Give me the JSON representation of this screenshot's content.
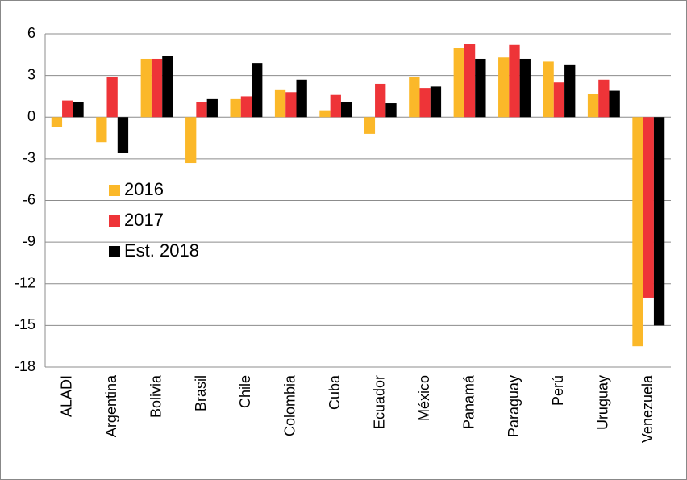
{
  "chart_data": {
    "type": "bar",
    "categories": [
      "ALADI",
      "Argentina",
      "Bolivia",
      "Brasil",
      "Chile",
      "Colombia",
      "Cuba",
      "Ecuador",
      "México",
      "Panamá",
      "Paraguay",
      "Perú",
      "Uruguay",
      "Venezuela"
    ],
    "series": [
      {
        "name": "2016",
        "color": "#fbb829",
        "values": [
          -0.7,
          -1.8,
          4.2,
          -3.3,
          1.3,
          2.0,
          0.5,
          -1.2,
          2.9,
          5.0,
          4.3,
          4.0,
          1.7,
          -16.5
        ]
      },
      {
        "name": "2017",
        "color": "#ee3438",
        "values": [
          1.2,
          2.9,
          4.2,
          1.1,
          1.5,
          1.8,
          1.6,
          2.4,
          2.1,
          5.3,
          5.2,
          2.5,
          2.7,
          -13.0
        ]
      },
      {
        "name": "Est. 2018",
        "color": "#000000",
        "values": [
          1.1,
          -2.6,
          4.4,
          1.3,
          3.9,
          2.7,
          1.1,
          1.0,
          2.2,
          4.2,
          4.2,
          3.8,
          1.9,
          -15.0
        ]
      }
    ],
    "ylim": [
      -18,
      6
    ],
    "yticks": [
      -18,
      -15,
      -12,
      -9,
      -6,
      -3,
      0,
      3,
      6
    ],
    "grid": true,
    "legend": "left"
  }
}
